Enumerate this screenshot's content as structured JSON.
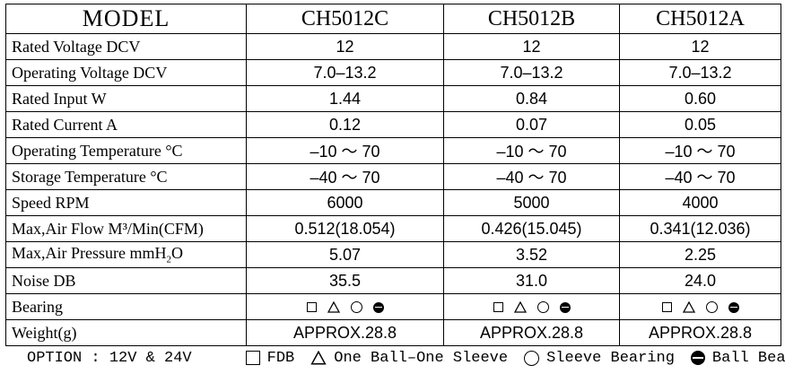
{
  "header": {
    "model_label": "MODEL",
    "models": [
      "CH5012C",
      "CH5012B",
      "CH5012A"
    ]
  },
  "rows": [
    {
      "label": "Rated Voltage DCV",
      "values": [
        "12",
        "12",
        "12"
      ]
    },
    {
      "label": "Operating Voltage DCV",
      "values": [
        "7.0–13.2",
        "7.0–13.2",
        "7.0–13.2"
      ]
    },
    {
      "label": "Rated Input W",
      "values": [
        "1.44",
        "0.84",
        "0.60"
      ]
    },
    {
      "label": "Rated Current A",
      "values": [
        "0.12",
        "0.07",
        "0.05"
      ]
    },
    {
      "label": "Operating Temperature °C",
      "values": [
        "–10 ～ 70",
        "–10 ～ 70",
        "–10 ～ 70"
      ]
    },
    {
      "label": "Storage Temperature °C",
      "values": [
        "–40 ～ 70",
        "–40 ～ 70",
        "–40 ～ 70"
      ]
    },
    {
      "label": "Speed RPM",
      "values": [
        "6000",
        "5000",
        "4000"
      ]
    },
    {
      "label": "Max,Air Flow M³/Min(CFM)",
      "values": [
        "0.512(18.054)",
        "0.426(15.045)",
        "0.341(12.036)"
      ]
    },
    {
      "label_pre": "Max,Air Pressure mmH",
      "label_sub": "2",
      "label_post": "O",
      "values": [
        "5.07",
        "3.52",
        "2.25"
      ]
    },
    {
      "label": "Noise DB",
      "values": [
        "35.5",
        "31.0",
        "24.0"
      ]
    },
    {
      "label": "Bearing",
      "symbols": [
        "square-icon",
        "triangle-icon",
        "circle-icon",
        "ball-icon"
      ]
    },
    {
      "label": "Weight(g)",
      "values": [
        "APPROX.28.8",
        "APPROX.28.8",
        "APPROX.28.8"
      ]
    }
  ],
  "legend": {
    "option": "OPTION : 12V & 24V",
    "items": [
      {
        "icon": "square-icon",
        "text": "FDB"
      },
      {
        "icon": "triangle-icon",
        "text": "One Ball–One Sleeve"
      },
      {
        "icon": "circle-icon",
        "text": "Sleeve Bearing"
      },
      {
        "icon": "ball-icon",
        "text": "Ball Bearing"
      }
    ]
  }
}
